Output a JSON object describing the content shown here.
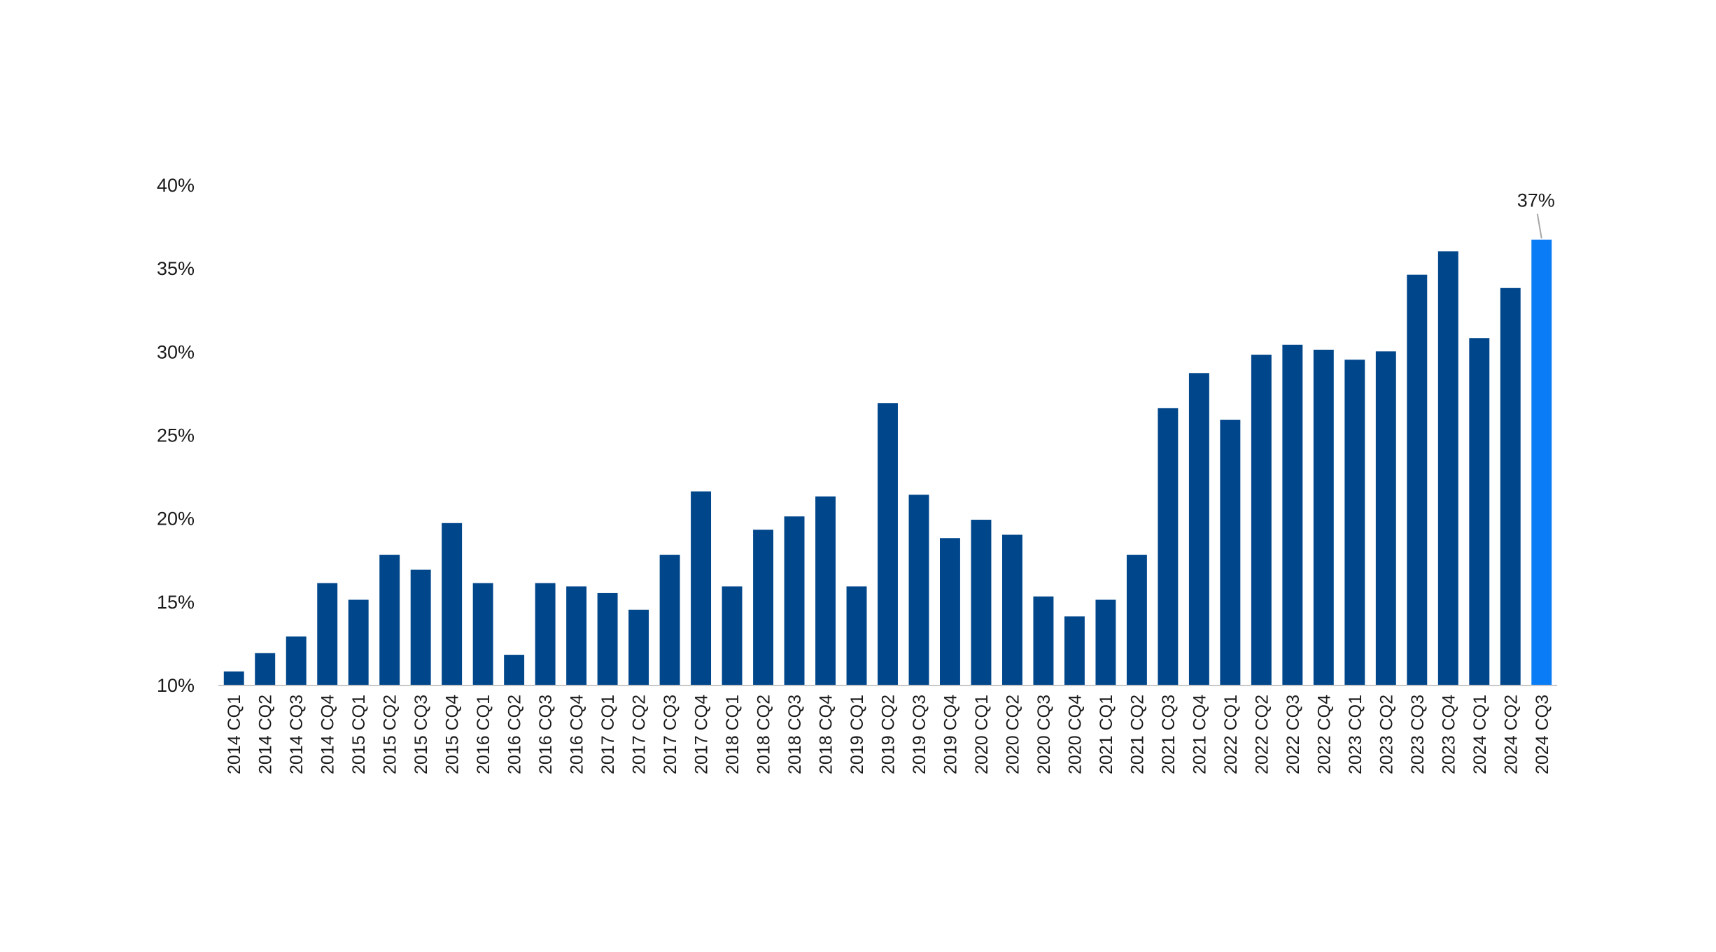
{
  "chart_data": {
    "type": "bar",
    "title": "",
    "xlabel": "",
    "ylabel": "",
    "ylim": [
      10,
      40
    ],
    "yticks": [
      "10%",
      "15%",
      "20%",
      "25%",
      "30%",
      "35%",
      "40%"
    ],
    "grid": false,
    "legend": "none",
    "categories": [
      "2014 CQ1",
      "2014 CQ2",
      "2014 CQ3",
      "2014 CQ4",
      "2015 CQ1",
      "2015 CQ2",
      "2015 CQ3",
      "2015 CQ4",
      "2016 CQ1",
      "2016 CQ2",
      "2016 CQ3",
      "2016 CQ4",
      "2017 CQ1",
      "2017 CQ2",
      "2017 CQ3",
      "2017 CQ4",
      "2018 CQ1",
      "2018 CQ2",
      "2018 CQ3",
      "2018 CQ4",
      "2019 CQ1",
      "2019 CQ2",
      "2019 CQ3",
      "2019 CQ4",
      "2020 CQ1",
      "2020 CQ2",
      "2020 CQ3",
      "2020 CQ4",
      "2021 CQ1",
      "2021 CQ2",
      "2021 CQ3",
      "2021 CQ4",
      "2022 CQ1",
      "2022 CQ2",
      "2022 CQ3",
      "2022 CQ4",
      "2023 CQ1",
      "2023 CQ2",
      "2023 CQ3",
      "2023 CQ4",
      "2024 CQ1",
      "2024 CQ2",
      "2024 CQ3"
    ],
    "values": [
      10.8,
      11.9,
      12.9,
      16.1,
      15.1,
      17.8,
      16.9,
      19.7,
      16.1,
      11.8,
      16.1,
      15.9,
      15.5,
      14.5,
      17.8,
      21.6,
      15.9,
      19.3,
      20.1,
      21.3,
      15.9,
      26.9,
      21.4,
      18.8,
      19.9,
      19.0,
      15.3,
      14.1,
      15.1,
      17.8,
      26.6,
      28.7,
      25.9,
      29.8,
      30.4,
      30.1,
      29.5,
      30.0,
      34.6,
      36.0,
      30.8,
      33.8,
      36.7
    ],
    "highlight_index": 42,
    "data_labels": [
      {
        "index": 42,
        "text": "37%"
      }
    ],
    "colors": {
      "bar": "#00468b",
      "highlight": "#0a7cf5",
      "axis": "#c8c8c8",
      "leader": "#a6a6a6"
    }
  }
}
